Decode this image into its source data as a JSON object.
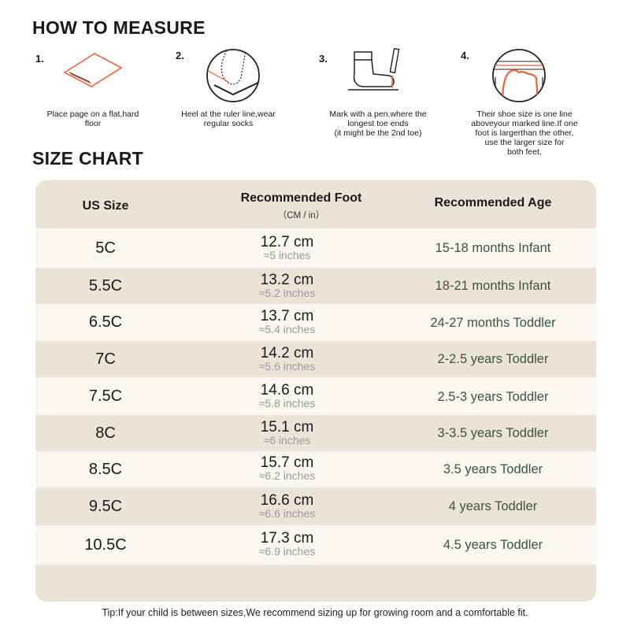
{
  "how_to": {
    "title": "HOW TO MEASURE",
    "steps": [
      {
        "num": "1.",
        "text": "Place page on a flat,hard\nfloor"
      },
      {
        "num": "2.",
        "text": "Heel at the ruler line,wear\nregular socks"
      },
      {
        "num": "3.",
        "text": "Mark with a pen,where the\nlongest toe ends\n(it might be the 2nd toe)"
      },
      {
        "num": "4.",
        "text": "Their shoe size is one line\naboveyour marked line.If one\nfoot is largerthan the other,\nuse the larger size for\nboth feet."
      }
    ]
  },
  "size_chart": {
    "title": "SIZE CHART",
    "headers": {
      "size": "US Size",
      "foot": "Recommended Foot",
      "foot_sub": "（CM / in）",
      "age": "Recommended Age"
    },
    "rows": [
      {
        "size": "5C",
        "cm": "12.7 cm",
        "inch": "≈5 inches",
        "age": "15-18 months Infant"
      },
      {
        "size": "5.5C",
        "cm": "13.2 cm",
        "inch": "≈5.2 inches",
        "age": "18-21 months Infant"
      },
      {
        "size": "6.5C",
        "cm": "13.7 cm",
        "inch": "≈5.4 inches",
        "age": "24-27 months Toddler"
      },
      {
        "size": "7C",
        "cm": "14.2 cm",
        "inch": "≈5.6 inches",
        "age": "2-2.5 years Toddler"
      },
      {
        "size": "7.5C",
        "cm": "14.6 cm",
        "inch": "≈5.8 inches",
        "age": "2.5-3 years Toddler"
      },
      {
        "size": "8C",
        "cm": "15.1 cm",
        "inch": "≈6 inches",
        "age": "3-3.5 years Toddler"
      },
      {
        "size": "8.5C",
        "cm": "15.7 cm",
        "inch": "≈6.2 inches",
        "age": "3.5 years Toddler"
      },
      {
        "size": "9.5C",
        "cm": "16.6 cm",
        "inch": "≈6.6 inches",
        "age": "4 years Toddler"
      },
      {
        "size": "10.5C",
        "cm": "17.3 cm",
        "inch": "≈6.9 inches",
        "age": "4.5 years Toddler"
      }
    ]
  },
  "tip": "Tip:If your child is between sizes,We recommend sizing up for growing room and a comfortable fit.",
  "colors": {
    "accent": "#e8643a",
    "table_bg": "#ebe3d6",
    "row_light": "#faf6f0",
    "age_text": "#3d5440"
  },
  "icons": [
    "paper-on-floor-icon",
    "heel-on-ruler-icon",
    "sock-pen-mark-icon",
    "foot-size-lines-icon"
  ]
}
